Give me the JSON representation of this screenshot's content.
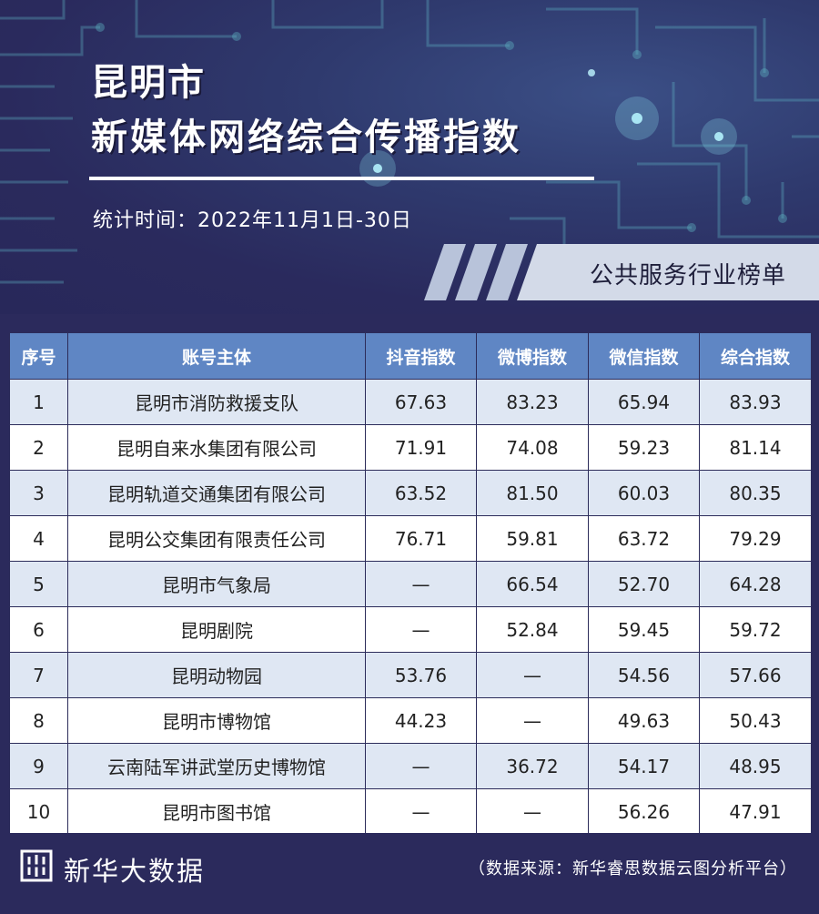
{
  "header": {
    "city": "昆明市",
    "title": "新媒体网络综合传播指数",
    "stat_time": "统计时间：2022年11月1日-30日",
    "category": "公共服务行业榜单"
  },
  "colors": {
    "background": "#2b2a5c",
    "table_header": "#5f86c4",
    "row_alt": "#dfe7f3"
  },
  "table": {
    "columns": [
      "序号",
      "账号主体",
      "抖音指数",
      "微博指数",
      "微信指数",
      "综合指数"
    ],
    "rows": [
      [
        "1",
        "昆明市消防救援支队",
        "67.63",
        "83.23",
        "65.94",
        "83.93"
      ],
      [
        "2",
        "昆明自来水集团有限公司",
        "71.91",
        "74.08",
        "59.23",
        "81.14"
      ],
      [
        "3",
        "昆明轨道交通集团有限公司",
        "63.52",
        "81.50",
        "60.03",
        "80.35"
      ],
      [
        "4",
        "昆明公交集团有限责任公司",
        "76.71",
        "59.81",
        "63.72",
        "79.29"
      ],
      [
        "5",
        "昆明市气象局",
        "—",
        "66.54",
        "52.70",
        "64.28"
      ],
      [
        "6",
        "昆明剧院",
        "—",
        "52.84",
        "59.45",
        "59.72"
      ],
      [
        "7",
        "昆明动物园",
        "53.76",
        "—",
        "54.56",
        "57.66"
      ],
      [
        "8",
        "昆明市博物馆",
        "44.23",
        "—",
        "49.63",
        "50.43"
      ],
      [
        "9",
        "云南陆军讲武堂历史博物馆",
        "—",
        "36.72",
        "54.17",
        "48.95"
      ],
      [
        "10",
        "昆明市图书馆",
        "—",
        "—",
        "56.26",
        "47.91"
      ]
    ]
  },
  "footer": {
    "brand": "新华大数据",
    "source": "（数据来源：新华睿思数据云图分析平台）",
    "logo_icon": "xinhua-logo-icon"
  }
}
